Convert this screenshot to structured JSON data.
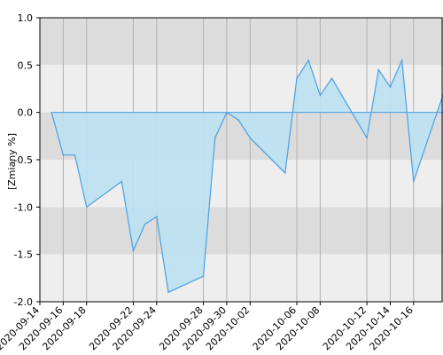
{
  "chart_data": {
    "type": "area",
    "title": "",
    "ylabel": "[Zmiany %]",
    "xlabel": "",
    "ylim": [
      -2.0,
      1.0
    ],
    "grid": true,
    "y_ticks": [
      1.0,
      0.5,
      0.0,
      -0.5,
      -1.0,
      -1.5,
      -2.0
    ],
    "y_tick_labels": [
      "1.0",
      "0.5",
      "0.0",
      "-0.5",
      "-1.0",
      "-1.5",
      "-2.0"
    ],
    "x_tick_labels": [
      "2020-09-14",
      "2020-09-16",
      "2020-09-18",
      "2020-09-22",
      "2020-09-24",
      "2020-09-28",
      "2020-09-30",
      "2020-10-02",
      "2020-10-06",
      "2020-10-08",
      "2020-10-12",
      "2020-10-14",
      "2020-10-16"
    ],
    "x": [
      "2020-09-15",
      "2020-09-16",
      "2020-09-17",
      "2020-09-18",
      "2020-09-21",
      "2020-09-22",
      "2020-09-23",
      "2020-09-24",
      "2020-09-25",
      "2020-09-28",
      "2020-09-29",
      "2020-09-30",
      "2020-10-01",
      "2020-10-02",
      "2020-10-05",
      "2020-10-06",
      "2020-10-07",
      "2020-10-08",
      "2020-10-09",
      "2020-10-12",
      "2020-10-13",
      "2020-10-14",
      "2020-10-15",
      "2020-10-16",
      "2020-10-19"
    ],
    "values": [
      0.0,
      -0.45,
      -0.45,
      -1.0,
      -0.73,
      -1.46,
      -1.18,
      -1.1,
      -1.9,
      -1.73,
      -0.27,
      0.0,
      -0.08,
      -0.27,
      -0.64,
      0.36,
      0.55,
      0.18,
      0.36,
      -0.27,
      0.45,
      0.27,
      0.55,
      -0.73,
      0.36
    ],
    "colors": {
      "line": "#4c9fe0",
      "fill": "#bde0f0",
      "band_dark": "#dcdcdc",
      "band_light": "#eeeeee",
      "gridline": "#b0b0b0"
    }
  }
}
